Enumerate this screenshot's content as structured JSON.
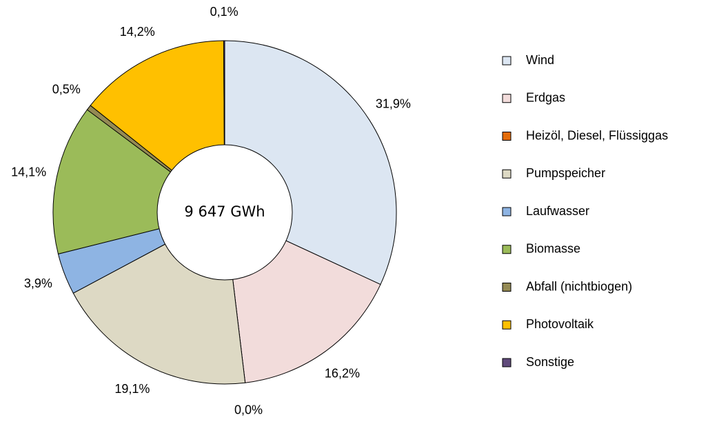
{
  "chart_data": {
    "type": "donut",
    "center_label": "9 647 GWh",
    "categories": [
      "Wind",
      "Erdgas",
      "Heizöl, Diesel, Flüssiggas",
      "Pumpspeicher",
      "Laufwasser",
      "Biomasse",
      "Abfall (nichtbiogen)",
      "Photovoltaik",
      "Sonstige"
    ],
    "values": [
      31.9,
      16.2,
      0.0,
      19.1,
      3.9,
      14.1,
      0.5,
      14.2,
      0.1
    ],
    "value_labels": [
      "31,9%",
      "16,2%",
      "0,0%",
      "19,1%",
      "3,9%",
      "14,1%",
      "0,5%",
      "14,2%",
      "0,1%"
    ],
    "colors": [
      "#dce6f2",
      "#f2dcdb",
      "#e46c0a",
      "#ddd9c4",
      "#8eb4e3",
      "#9bbb59",
      "#948a54",
      "#ffc000",
      "#604a7b"
    ],
    "legend": "right"
  }
}
